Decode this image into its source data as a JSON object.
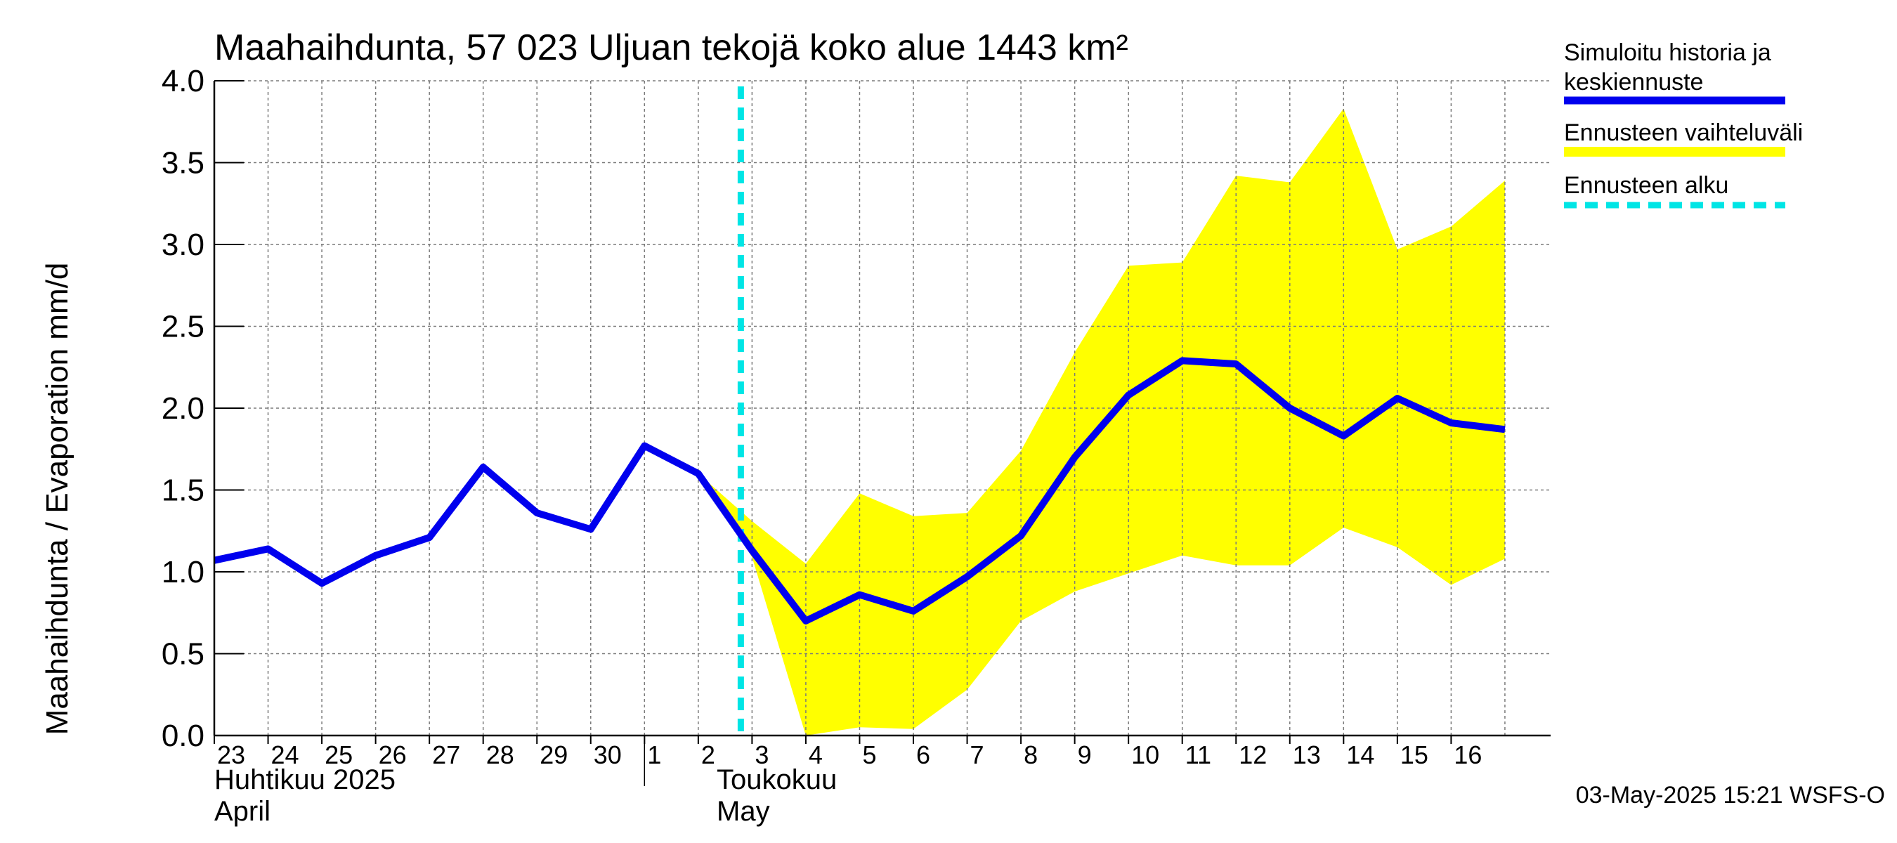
{
  "chart_data": {
    "type": "line",
    "title": "Maahaihdunta, 57 023 Uljuan tekojä koko alue 1443 km²",
    "ylabel": "Maahaihdunta / Evaporation   mm/d",
    "ylim": [
      0,
      4
    ],
    "yticks": [
      "0.0",
      "0.5",
      "1.0",
      "1.5",
      "2.0",
      "2.5",
      "3.0",
      "3.5",
      "4.0"
    ],
    "x_tick_labels": [
      "23",
      "24",
      "25",
      "26",
      "27",
      "28",
      "29",
      "30",
      "1",
      "2",
      "3",
      "4",
      "5",
      "6",
      "7",
      "8",
      "9",
      "10",
      "11",
      "12",
      "13",
      "14",
      "15",
      "16"
    ],
    "month_labels": {
      "april_fi": "Huhtikuu  2025",
      "april_en": "April",
      "may_fi": "Toukokuu",
      "may_en": "May"
    },
    "grid": true,
    "legend_position": "right",
    "forecast_start": "2025-05-03",
    "series": [
      {
        "name": "Simuloitu historia ja keskiennuste",
        "color": "#0000ee",
        "points": [
          [
            "2025-04-23",
            1.07
          ],
          [
            "2025-04-24",
            1.14
          ],
          [
            "2025-04-25",
            0.93
          ],
          [
            "2025-04-26",
            1.1
          ],
          [
            "2025-04-27",
            1.21
          ],
          [
            "2025-04-28",
            1.64
          ],
          [
            "2025-04-29",
            1.36
          ],
          [
            "2025-04-30",
            1.26
          ],
          [
            "2025-05-01",
            1.77
          ],
          [
            "2025-05-02",
            1.6
          ],
          [
            "2025-05-03",
            1.13
          ],
          [
            "2025-05-04",
            0.7
          ],
          [
            "2025-05-05",
            0.86
          ],
          [
            "2025-05-06",
            0.76
          ],
          [
            "2025-05-07",
            0.97
          ],
          [
            "2025-05-08",
            1.22
          ],
          [
            "2025-05-09",
            1.7
          ],
          [
            "2025-05-10",
            2.08
          ],
          [
            "2025-05-11",
            2.29
          ],
          [
            "2025-05-12",
            2.27
          ],
          [
            "2025-05-13",
            2.0
          ],
          [
            "2025-05-14",
            1.83
          ],
          [
            "2025-05-15",
            2.06
          ],
          [
            "2025-05-16",
            1.91
          ],
          [
            "2025-05-17",
            1.87
          ]
        ]
      },
      {
        "name": "Ennusteen vaihteluväli",
        "color": "#ffff00",
        "band": [
          [
            "2025-05-02",
            1.6,
            1.6
          ],
          [
            "2025-05-03",
            1.09,
            1.31
          ],
          [
            "2025-05-04",
            0.0,
            1.05
          ],
          [
            "2025-05-05",
            0.05,
            1.48
          ],
          [
            "2025-05-06",
            0.04,
            1.34
          ],
          [
            "2025-05-07",
            0.28,
            1.36
          ],
          [
            "2025-05-08",
            0.7,
            1.74
          ],
          [
            "2025-05-09",
            0.88,
            2.34
          ],
          [
            "2025-05-10",
            0.99,
            2.87
          ],
          [
            "2025-05-11",
            1.1,
            2.89
          ],
          [
            "2025-05-12",
            1.04,
            3.42
          ],
          [
            "2025-05-13",
            1.04,
            3.38
          ],
          [
            "2025-05-14",
            1.27,
            3.83
          ],
          [
            "2025-05-15",
            1.15,
            2.97
          ],
          [
            "2025-05-16",
            0.92,
            3.11
          ],
          [
            "2025-05-17",
            1.08,
            3.39
          ]
        ]
      }
    ]
  },
  "legend": {
    "history_line1": "Simuloitu historia ja",
    "history_line2": "keskiennuste",
    "range": "Ennusteen vaihteluväli",
    "forecast_start": "Ennusteen alku",
    "colors": {
      "history": "#0000ee",
      "range": "#ffff00",
      "forecast_start": "#00e5e5"
    }
  },
  "footer": {
    "timestamp": "03-May-2025 15:21 WSFS-O"
  }
}
